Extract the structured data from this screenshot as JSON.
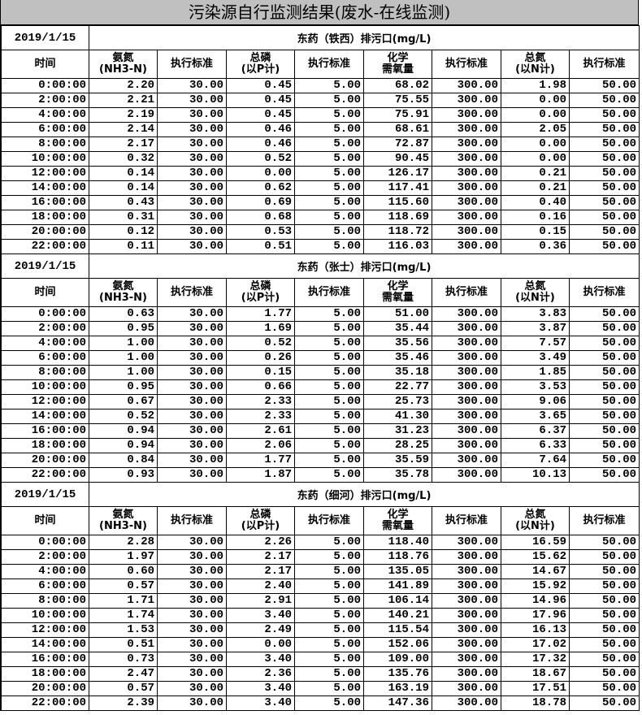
{
  "title": "污染源自行监测结果(废水-在线监测)",
  "columns": [
    "时间",
    [
      "氨氮",
      "(NH3-N)"
    ],
    "执行标准",
    [
      "总磷",
      "(以P计)"
    ],
    "执行标准",
    [
      "化学",
      "需氧量"
    ],
    "执行标准",
    [
      "总氮",
      "(以N计)"
    ],
    "执行标准"
  ],
  "sections": [
    {
      "date": "2019/1/15",
      "outlet": "东药（铁西）排污口(mg/L)",
      "rows": [
        [
          "0:00:00",
          "2.20",
          "30.00",
          "0.45",
          "5.00",
          "68.02",
          "300.00",
          "1.98",
          "50.00"
        ],
        [
          "2:00:00",
          "2.21",
          "30.00",
          "0.45",
          "5.00",
          "75.55",
          "300.00",
          "0.00",
          "50.00"
        ],
        [
          "4:00:00",
          "2.19",
          "30.00",
          "0.45",
          "5.00",
          "75.91",
          "300.00",
          "0.00",
          "50.00"
        ],
        [
          "6:00:00",
          "2.14",
          "30.00",
          "0.46",
          "5.00",
          "68.61",
          "300.00",
          "2.05",
          "50.00"
        ],
        [
          "8:00:00",
          "2.17",
          "30.00",
          "0.46",
          "5.00",
          "72.87",
          "300.00",
          "0.00",
          "50.00"
        ],
        [
          "10:00:00",
          "0.32",
          "30.00",
          "0.52",
          "5.00",
          "90.45",
          "300.00",
          "0.00",
          "50.00"
        ],
        [
          "12:00:00",
          "0.14",
          "30.00",
          "0.00",
          "5.00",
          "126.17",
          "300.00",
          "0.21",
          "50.00"
        ],
        [
          "14:00:00",
          "0.14",
          "30.00",
          "0.62",
          "5.00",
          "117.41",
          "300.00",
          "0.21",
          "50.00"
        ],
        [
          "16:00:00",
          "0.43",
          "30.00",
          "0.69",
          "5.00",
          "115.60",
          "300.00",
          "0.40",
          "50.00"
        ],
        [
          "18:00:00",
          "0.31",
          "30.00",
          "0.68",
          "5.00",
          "118.69",
          "300.00",
          "0.16",
          "50.00"
        ],
        [
          "20:00:00",
          "0.12",
          "30.00",
          "0.53",
          "5.00",
          "118.72",
          "300.00",
          "0.15",
          "50.00"
        ],
        [
          "22:00:00",
          "0.11",
          "30.00",
          "0.51",
          "5.00",
          "116.03",
          "300.00",
          "0.36",
          "50.00"
        ]
      ]
    },
    {
      "date": "2019/1/15",
      "outlet": "东药（张士）排污口(mg/L)",
      "rows": [
        [
          "0:00:00",
          "0.63",
          "30.00",
          "1.77",
          "5.00",
          "51.00",
          "300.00",
          "3.83",
          "50.00"
        ],
        [
          "2:00:00",
          "0.95",
          "30.00",
          "1.69",
          "5.00",
          "35.44",
          "300.00",
          "3.87",
          "50.00"
        ],
        [
          "4:00:00",
          "1.00",
          "30.00",
          "0.52",
          "5.00",
          "35.56",
          "300.00",
          "7.57",
          "50.00"
        ],
        [
          "6:00:00",
          "1.00",
          "30.00",
          "0.26",
          "5.00",
          "35.46",
          "300.00",
          "3.49",
          "50.00"
        ],
        [
          "8:00:00",
          "1.00",
          "30.00",
          "0.15",
          "5.00",
          "35.18",
          "300.00",
          "1.85",
          "50.00"
        ],
        [
          "10:00:00",
          "0.95",
          "30.00",
          "0.66",
          "5.00",
          "22.77",
          "300.00",
          "3.53",
          "50.00"
        ],
        [
          "12:00:00",
          "0.67",
          "30.00",
          "2.33",
          "5.00",
          "25.73",
          "300.00",
          "9.06",
          "50.00"
        ],
        [
          "14:00:00",
          "0.52",
          "30.00",
          "2.33",
          "5.00",
          "41.30",
          "300.00",
          "3.65",
          "50.00"
        ],
        [
          "16:00:00",
          "0.94",
          "30.00",
          "2.61",
          "5.00",
          "31.23",
          "300.00",
          "6.37",
          "50.00"
        ],
        [
          "18:00:00",
          "0.94",
          "30.00",
          "2.06",
          "5.00",
          "28.25",
          "300.00",
          "6.33",
          "50.00"
        ],
        [
          "20:00:00",
          "0.84",
          "30.00",
          "1.77",
          "5.00",
          "35.59",
          "300.00",
          "7.64",
          "50.00"
        ],
        [
          "22:00:00",
          "0.93",
          "30.00",
          "1.87",
          "5.00",
          "35.78",
          "300.00",
          "10.13",
          "50.00"
        ]
      ]
    },
    {
      "date": "2019/1/15",
      "outlet": "东药（细河）排污口(mg/L)",
      "rows": [
        [
          "0:00:00",
          "2.28",
          "30.00",
          "2.26",
          "5.00",
          "118.40",
          "300.00",
          "16.59",
          "50.00"
        ],
        [
          "2:00:00",
          "1.97",
          "30.00",
          "2.17",
          "5.00",
          "118.76",
          "300.00",
          "15.62",
          "50.00"
        ],
        [
          "4:00:00",
          "0.60",
          "30.00",
          "2.17",
          "5.00",
          "135.05",
          "300.00",
          "14.67",
          "50.00"
        ],
        [
          "6:00:00",
          "0.57",
          "30.00",
          "2.40",
          "5.00",
          "141.89",
          "300.00",
          "15.92",
          "50.00"
        ],
        [
          "8:00:00",
          "1.71",
          "30.00",
          "2.91",
          "5.00",
          "106.14",
          "300.00",
          "14.96",
          "50.00"
        ],
        [
          "10:00:00",
          "1.74",
          "30.00",
          "3.40",
          "5.00",
          "140.21",
          "300.00",
          "17.96",
          "50.00"
        ],
        [
          "12:00:00",
          "1.53",
          "30.00",
          "2.49",
          "5.00",
          "115.54",
          "300.00",
          "16.13",
          "50.00"
        ],
        [
          "14:00:00",
          "0.51",
          "30.00",
          "0.00",
          "5.00",
          "152.06",
          "300.00",
          "17.02",
          "50.00"
        ],
        [
          "16:00:00",
          "0.73",
          "30.00",
          "3.40",
          "5.00",
          "109.00",
          "300.00",
          "17.32",
          "50.00"
        ],
        [
          "18:00:00",
          "2.47",
          "30.00",
          "2.36",
          "5.00",
          "135.76",
          "300.00",
          "18.67",
          "50.00"
        ],
        [
          "20:00:00",
          "0.57",
          "30.00",
          "3.40",
          "5.00",
          "163.19",
          "300.00",
          "17.51",
          "50.00"
        ],
        [
          "22:00:00",
          "2.39",
          "30.00",
          "3.40",
          "5.00",
          "147.36",
          "300.00",
          "18.78",
          "50.00"
        ]
      ]
    }
  ]
}
